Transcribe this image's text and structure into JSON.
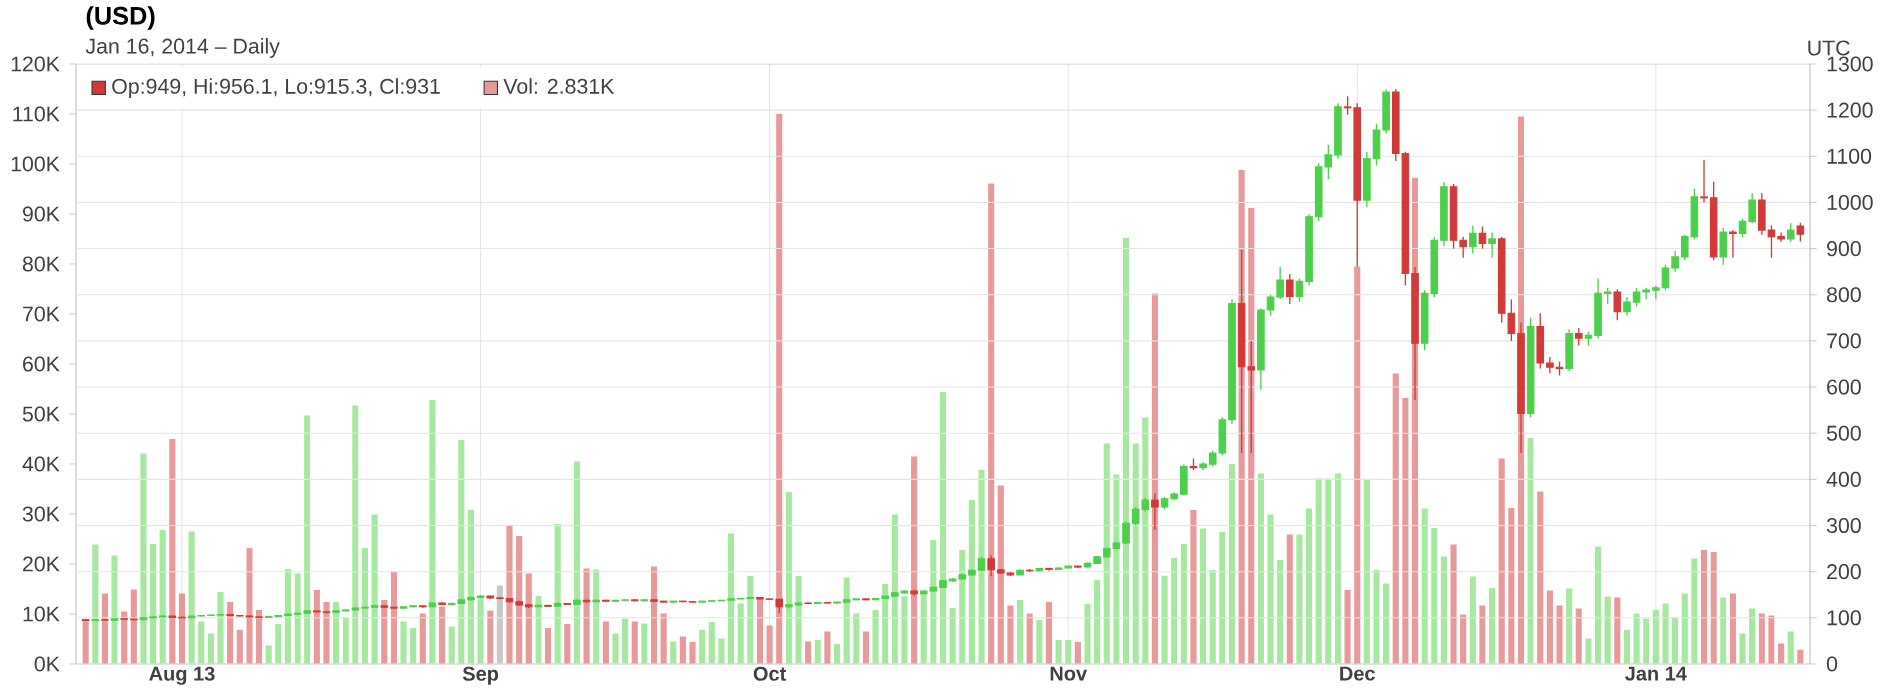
{
  "chart_data": {
    "type": "candlestick",
    "title": "(USD)",
    "subtitle": "Jan 16, 2014 – Daily",
    "annotations": [
      "UTC"
    ],
    "legend": "top left",
    "grid": true,
    "xlim": [
      "2013-07-21",
      "2014-01-17"
    ],
    "xticks": [
      {
        "value": "2013-08-01",
        "label": "Aug 13"
      },
      {
        "value": "2013-09-01",
        "label": "Sep"
      },
      {
        "value": "2013-10-01",
        "label": "Oct"
      },
      {
        "value": "2013-11-01",
        "label": "Nov"
      },
      {
        "value": "2013-12-01",
        "label": "Dec"
      },
      {
        "value": "2014-01-01",
        "label": "Jan 14"
      }
    ],
    "ylim": [
      0,
      120
    ],
    "yticks": [
      {
        "value": 0,
        "label": "0K"
      },
      {
        "value": 10,
        "label": "10K"
      },
      {
        "value": 20,
        "label": "20K"
      },
      {
        "value": 30,
        "label": "30K"
      },
      {
        "value": 40,
        "label": "40K"
      },
      {
        "value": 50,
        "label": "50K"
      },
      {
        "value": 60,
        "label": "60K"
      },
      {
        "value": 70,
        "label": "70K"
      },
      {
        "value": 80,
        "label": "80K"
      },
      {
        "value": 90,
        "label": "90K"
      },
      {
        "value": 100,
        "label": "100K"
      },
      {
        "value": 110,
        "label": "110K"
      },
      {
        "value": 120,
        "label": "120K"
      }
    ],
    "y2lim": [
      0,
      1300
    ],
    "y2ticks": [
      0,
      100,
      200,
      300,
      400,
      500,
      600,
      700,
      800,
      900,
      1000,
      1100,
      1200,
      1300
    ],
    "x": [
      "2013-07-22",
      "2013-07-23",
      "2013-07-24",
      "2013-07-25",
      "2013-07-26",
      "2013-07-27",
      "2013-07-28",
      "2013-07-29",
      "2013-07-30",
      "2013-07-31",
      "2013-08-01",
      "2013-08-02",
      "2013-08-03",
      "2013-08-04",
      "2013-08-05",
      "2013-08-06",
      "2013-08-07",
      "2013-08-08",
      "2013-08-09",
      "2013-08-10",
      "2013-08-11",
      "2013-08-12",
      "2013-08-13",
      "2013-08-14",
      "2013-08-15",
      "2013-08-16",
      "2013-08-17",
      "2013-08-18",
      "2013-08-19",
      "2013-08-20",
      "2013-08-21",
      "2013-08-22",
      "2013-08-23",
      "2013-08-24",
      "2013-08-25",
      "2013-08-26",
      "2013-08-27",
      "2013-08-28",
      "2013-08-29",
      "2013-08-30",
      "2013-08-31",
      "2013-09-01",
      "2013-09-02",
      "2013-09-03",
      "2013-09-04",
      "2013-09-05",
      "2013-09-06",
      "2013-09-07",
      "2013-09-08",
      "2013-09-09",
      "2013-09-10",
      "2013-09-11",
      "2013-09-12",
      "2013-09-13",
      "2013-09-14",
      "2013-09-15",
      "2013-09-16",
      "2013-09-17",
      "2013-09-18",
      "2013-09-19",
      "2013-09-20",
      "2013-09-21",
      "2013-09-22",
      "2013-09-23",
      "2013-09-24",
      "2013-09-25",
      "2013-09-26",
      "2013-09-27",
      "2013-09-28",
      "2013-09-29",
      "2013-09-30",
      "2013-10-01",
      "2013-10-02",
      "2013-10-03",
      "2013-10-04",
      "2013-10-05",
      "2013-10-06",
      "2013-10-07",
      "2013-10-08",
      "2013-10-09",
      "2013-10-10",
      "2013-10-11",
      "2013-10-12",
      "2013-10-13",
      "2013-10-14",
      "2013-10-15",
      "2013-10-16",
      "2013-10-17",
      "2013-10-18",
      "2013-10-19",
      "2013-10-20",
      "2013-10-21",
      "2013-10-22",
      "2013-10-23",
      "2013-10-24",
      "2013-10-25",
      "2013-10-26",
      "2013-10-27",
      "2013-10-28",
      "2013-10-29",
      "2013-10-30",
      "2013-10-31",
      "2013-11-01",
      "2013-11-02",
      "2013-11-03",
      "2013-11-04",
      "2013-11-05",
      "2013-11-06",
      "2013-11-07",
      "2013-11-08",
      "2013-11-09",
      "2013-11-10",
      "2013-11-11",
      "2013-11-12",
      "2013-11-13",
      "2013-11-14",
      "2013-11-15",
      "2013-11-16",
      "2013-11-17",
      "2013-11-18",
      "2013-11-19",
      "2013-11-20",
      "2013-11-21",
      "2013-11-22",
      "2013-11-23",
      "2013-11-24",
      "2013-11-25",
      "2013-11-26",
      "2013-11-27",
      "2013-11-28",
      "2013-11-29",
      "2013-11-30",
      "2013-12-01",
      "2013-12-02",
      "2013-12-03",
      "2013-12-04",
      "2013-12-05",
      "2013-12-06",
      "2013-12-07",
      "2013-12-08",
      "2013-12-09",
      "2013-12-10",
      "2013-12-11",
      "2013-12-12",
      "2013-12-13",
      "2013-12-14",
      "2013-12-15",
      "2013-12-16",
      "2013-12-17",
      "2013-12-18",
      "2013-12-19",
      "2013-12-20",
      "2013-12-21",
      "2013-12-22",
      "2013-12-23",
      "2013-12-24",
      "2013-12-25",
      "2013-12-26",
      "2013-12-27",
      "2013-12-28",
      "2013-12-29",
      "2013-12-30",
      "2013-12-31",
      "2014-01-01",
      "2014-01-02",
      "2014-01-03",
      "2014-01-04",
      "2014-01-05",
      "2014-01-06",
      "2014-01-07",
      "2014-01-08",
      "2014-01-09",
      "2014-01-10",
      "2014-01-11",
      "2014-01-12",
      "2014-01-13",
      "2014-01-14",
      "2014-01-15",
      "2014-01-16"
    ],
    "series": [
      {
        "type": "bar",
        "name": "Vol: 2.831K",
        "color": "#e89a9a",
        "values": [
          8.5,
          23.9,
          14.1,
          21.7,
          10.5,
          14.9,
          42.1,
          24,
          26.8,
          45,
          14.1,
          26.5,
          8.5,
          6.1,
          14.4,
          12.4,
          6.8,
          23.2,
          10.8,
          3.7,
          8,
          19,
          18.1,
          49.7,
          14.8,
          12.4,
          12.4,
          9.3,
          51.7,
          23.2,
          29.9,
          12.8,
          18.4,
          8.5,
          7.2,
          10.1,
          52.8,
          11.5,
          7.5,
          44.8,
          30.8,
          13.1,
          10.7,
          15.7,
          27.7,
          25.6,
          18.1,
          13.6,
          7.2,
          28,
          8,
          40.5,
          19.1,
          18.9,
          8.5,
          6.1,
          9.1,
          8.5,
          8.1,
          19.5,
          10.1,
          4.5,
          5.5,
          4.4,
          6.8,
          8.4,
          5.1,
          26.1,
          12.1,
          17.6,
          13.1,
          7.7,
          110,
          34.4,
          17.6,
          4.5,
          4.8,
          6.5,
          4,
          17.3,
          10.1,
          6.5,
          10.8,
          16,
          29.9,
          13.5,
          41.5,
          14.1,
          24.8,
          54.4,
          11.2,
          22.8,
          32.8,
          38.8,
          96.1,
          35.7,
          11.7,
          12.8,
          10.1,
          8.8,
          12.4,
          4.8,
          4.8,
          4.4,
          12,
          16.8,
          44.1,
          37.9,
          85.2,
          44.1,
          49.3,
          74.1,
          17.7,
          21.2,
          24,
          30.8,
          27.1,
          18.8,
          26.4,
          40,
          98.8,
          91.2,
          38.1,
          29.9,
          20.8,
          25.9,
          25.9,
          31.1,
          37.1,
          37.1,
          38.1,
          14.8,
          79.5,
          36.8,
          18.8,
          16.1,
          58.1,
          53.2,
          97.2,
          31.1,
          27.2,
          21.5,
          23.9,
          9.9,
          17.5,
          11.7,
          15.2,
          41.1,
          31.2,
          109.5,
          45.2,
          34.5,
          14.7,
          11.7,
          15.1,
          11.1,
          5.1,
          23.5,
          13.5,
          13.3,
          6.8,
          10.1,
          9.1,
          10.8,
          12.1,
          9.3,
          14.1,
          21.1,
          22.8,
          22.4,
          13.3,
          14.1,
          6.1,
          11.1,
          10.1,
          9.7,
          4.1,
          6.5,
          2.831
        ],
        "colors": [
          "#e89a9a",
          "#a6e8a0",
          "#e89a9a",
          "#a6e8a0",
          "#e89a9a",
          "#e89a9a",
          "#a6e8a0",
          "#a6e8a0",
          "#a6e8a0",
          "#e89a9a",
          "#e89a9a",
          "#a6e8a0",
          "#a6e8a0",
          "#a6e8a0",
          "#a6e8a0",
          "#e89a9a",
          "#e89a9a",
          "#e89a9a",
          "#e89a9a",
          "#a6e8a0",
          "#a6e8a0",
          "#a6e8a0",
          "#a6e8a0",
          "#a6e8a0",
          "#e89a9a",
          "#e89a9a",
          "#a6e8a0",
          "#a6e8a0",
          "#a6e8a0",
          "#a6e8a0",
          "#a6e8a0",
          "#e89a9a",
          "#e89a9a",
          "#a6e8a0",
          "#a6e8a0",
          "#e89a9a",
          "#a6e8a0",
          "#e89a9a",
          "#a6e8a0",
          "#a6e8a0",
          "#a6e8a0",
          "#a6e8a0",
          "#e89a9a",
          "#c8c8c8",
          "#e89a9a",
          "#e89a9a",
          "#e89a9a",
          "#a6e8a0",
          "#e89a9a",
          "#a6e8a0",
          "#e89a9a",
          "#a6e8a0",
          "#e89a9a",
          "#a6e8a0",
          "#e89a9a",
          "#a6e8a0",
          "#a6e8a0",
          "#e89a9a",
          "#a6e8a0",
          "#e89a9a",
          "#e89a9a",
          "#a6e8a0",
          "#e89a9a",
          "#e89a9a",
          "#a6e8a0",
          "#a6e8a0",
          "#a6e8a0",
          "#a6e8a0",
          "#a6e8a0",
          "#a6e8a0",
          "#e89a9a",
          "#e89a9a",
          "#e89a9a",
          "#a6e8a0",
          "#a6e8a0",
          "#e89a9a",
          "#a6e8a0",
          "#e89a9a",
          "#a6e8a0",
          "#a6e8a0",
          "#a6e8a0",
          "#e89a9a",
          "#a6e8a0",
          "#a6e8a0",
          "#a6e8a0",
          "#a6e8a0",
          "#e89a9a",
          "#a6e8a0",
          "#a6e8a0",
          "#a6e8a0",
          "#a6e8a0",
          "#a6e8a0",
          "#a6e8a0",
          "#a6e8a0",
          "#e89a9a",
          "#e89a9a",
          "#e89a9a",
          "#a6e8a0",
          "#e89a9a",
          "#a6e8a0",
          "#e89a9a",
          "#a6e8a0",
          "#a6e8a0",
          "#e89a9a",
          "#a6e8a0",
          "#a6e8a0",
          "#a6e8a0",
          "#a6e8a0",
          "#a6e8a0",
          "#a6e8a0",
          "#a6e8a0",
          "#e89a9a",
          "#a6e8a0",
          "#a6e8a0",
          "#a6e8a0",
          "#e89a9a",
          "#a6e8a0",
          "#a6e8a0",
          "#a6e8a0",
          "#a6e8a0",
          "#e89a9a",
          "#e89a9a",
          "#a6e8a0",
          "#a6e8a0",
          "#a6e8a0",
          "#e89a9a",
          "#a6e8a0",
          "#a6e8a0",
          "#a6e8a0",
          "#a6e8a0",
          "#a6e8a0",
          "#e89a9a",
          "#e89a9a",
          "#a6e8a0",
          "#a6e8a0",
          "#a6e8a0",
          "#e89a9a",
          "#e89a9a",
          "#e89a9a",
          "#a6e8a0",
          "#a6e8a0",
          "#a6e8a0",
          "#e89a9a",
          "#e89a9a",
          "#a6e8a0",
          "#e89a9a",
          "#a6e8a0",
          "#e89a9a",
          "#e89a9a",
          "#e89a9a",
          "#a6e8a0",
          "#e89a9a",
          "#e89a9a",
          "#e89a9a",
          "#a6e8a0",
          "#e89a9a",
          "#a6e8a0",
          "#a6e8a0",
          "#a6e8a0",
          "#e89a9a",
          "#a6e8a0",
          "#a6e8a0",
          "#a6e8a0",
          "#a6e8a0",
          "#a6e8a0",
          "#a6e8a0",
          "#a6e8a0",
          "#a6e8a0",
          "#e89a9a",
          "#e89a9a",
          "#a6e8a0",
          "#e89a9a",
          "#a6e8a0",
          "#a6e8a0",
          "#e89a9a",
          "#e89a9a",
          "#e89a9a",
          "#a6e8a0",
          "#e89a9a"
        ]
      },
      {
        "axis": "y2",
        "name": "Op:949, Hi:956.1, Lo:915.3, Cl:931",
        "color": "#d23a3a",
        "ohlc": [
          [
            96,
            97,
            93,
            94
          ],
          [
            94,
            97,
            93,
            96
          ],
          [
            96,
            97,
            94,
            95
          ],
          [
            95,
            99,
            94,
            98
          ],
          [
            98,
            99,
            96,
            97
          ],
          [
            97,
            98,
            94,
            96
          ],
          [
            96,
            101,
            95,
            100
          ],
          [
            100,
            103,
            99,
            102
          ],
          [
            102,
            105,
            101,
            104
          ],
          [
            104,
            105,
            99,
            101
          ],
          [
            101,
            103,
            99,
            100
          ],
          [
            100,
            105,
            99,
            104
          ],
          [
            104,
            106,
            103,
            105
          ],
          [
            105,
            107,
            104,
            106
          ],
          [
            106,
            108,
            105,
            107
          ],
          [
            107,
            108,
            104,
            105
          ],
          [
            105,
            106,
            103,
            104
          ],
          [
            104,
            105,
            100,
            102
          ],
          [
            102,
            103,
            100,
            101
          ],
          [
            101,
            104,
            100,
            103
          ],
          [
            103,
            106,
            102,
            105
          ],
          [
            105,
            109,
            104,
            108
          ],
          [
            108,
            111,
            107,
            110
          ],
          [
            110,
            116,
            109,
            115
          ],
          [
            115,
            116,
            111,
            113
          ],
          [
            113,
            114,
            110,
            112
          ],
          [
            112,
            116,
            111,
            115
          ],
          [
            115,
            118,
            114,
            117
          ],
          [
            117,
            123,
            116,
            121
          ],
          [
            121,
            124,
            119,
            123
          ],
          [
            123,
            128,
            122,
            126
          ],
          [
            126,
            127,
            121,
            123
          ],
          [
            123,
            124,
            119,
            121
          ],
          [
            121,
            125,
            120,
            124
          ],
          [
            124,
            127,
            123,
            126
          ],
          [
            126,
            127,
            122,
            124
          ],
          [
            124,
            134,
            123,
            132
          ],
          [
            132,
            133,
            127,
            129
          ],
          [
            129,
            133,
            128,
            131
          ],
          [
            131,
            141,
            130,
            139
          ],
          [
            139,
            146,
            137,
            144
          ],
          [
            144,
            149,
            142,
            147
          ],
          [
            147,
            148,
            141,
            143
          ],
          [
            143,
            145,
            140,
            142
          ],
          [
            142,
            143,
            133,
            135
          ],
          [
            135,
            137,
            126,
            128
          ],
          [
            128,
            130,
            121,
            124
          ],
          [
            124,
            129,
            123,
            127
          ],
          [
            127,
            128,
            124,
            125
          ],
          [
            125,
            133,
            124,
            131
          ],
          [
            131,
            132,
            128,
            129
          ],
          [
            129,
            140,
            128,
            138
          ],
          [
            138,
            139,
            133,
            135
          ],
          [
            135,
            140,
            134,
            138
          ],
          [
            138,
            139,
            135,
            136
          ],
          [
            136,
            139,
            135,
            138
          ],
          [
            138,
            140,
            137,
            139
          ],
          [
            139,
            140,
            136,
            137
          ],
          [
            137,
            140,
            136,
            139
          ],
          [
            139,
            140,
            134,
            136
          ],
          [
            136,
            137,
            133,
            134
          ],
          [
            134,
            137,
            133,
            136
          ],
          [
            136,
            137,
            134,
            135
          ],
          [
            135,
            136,
            133,
            134
          ],
          [
            134,
            137,
            133,
            136
          ],
          [
            136,
            138,
            135,
            137
          ],
          [
            137,
            139,
            136,
            138
          ],
          [
            138,
            143,
            137,
            141
          ],
          [
            141,
            143,
            140,
            142
          ],
          [
            142,
            145,
            141,
            144
          ],
          [
            144,
            145,
            140,
            141
          ],
          [
            141,
            142,
            139,
            140
          ],
          [
            140,
            141,
            110,
            124
          ],
          [
            124,
            130,
            120,
            128
          ],
          [
            128,
            133,
            127,
            132
          ],
          [
            132,
            133,
            130,
            131
          ],
          [
            131,
            134,
            130,
            133
          ],
          [
            133,
            134,
            131,
            132
          ],
          [
            132,
            135,
            131,
            134
          ],
          [
            134,
            140,
            133,
            139
          ],
          [
            139,
            142,
            138,
            141
          ],
          [
            141,
            142,
            138,
            139
          ],
          [
            139,
            143,
            138,
            142
          ],
          [
            142,
            148,
            141,
            147
          ],
          [
            147,
            156,
            146,
            154
          ],
          [
            154,
            160,
            153,
            158
          ],
          [
            158,
            160,
            148,
            152
          ],
          [
            152,
            160,
            151,
            158
          ],
          [
            158,
            168,
            157,
            166
          ],
          [
            166,
            182,
            165,
            180
          ],
          [
            180,
            186,
            178,
            184
          ],
          [
            184,
            195,
            183,
            193
          ],
          [
            193,
            205,
            191,
            203
          ],
          [
            203,
            232,
            200,
            228
          ],
          [
            228,
            235,
            190,
            204
          ],
          [
            204,
            206,
            195,
            197
          ],
          [
            197,
            199,
            190,
            193
          ],
          [
            193,
            205,
            192,
            203
          ],
          [
            203,
            206,
            200,
            202
          ],
          [
            202,
            208,
            201,
            207
          ],
          [
            207,
            208,
            202,
            205
          ],
          [
            205,
            210,
            204,
            208
          ],
          [
            208,
            213,
            207,
            212
          ],
          [
            212,
            213,
            208,
            210
          ],
          [
            210,
            220,
            209,
            218
          ],
          [
            218,
            234,
            217,
            232
          ],
          [
            232,
            252,
            230,
            250
          ],
          [
            250,
            265,
            248,
            262
          ],
          [
            262,
            310,
            260,
            305
          ],
          [
            305,
            340,
            300,
            335
          ],
          [
            335,
            360,
            330,
            355
          ],
          [
            355,
            370,
            290,
            340
          ],
          [
            340,
            362,
            335,
            358
          ],
          [
            358,
            372,
            355,
            368
          ],
          [
            368,
            432,
            365,
            428
          ],
          [
            428,
            445,
            420,
            425
          ],
          [
            425,
            438,
            420,
            433
          ],
          [
            433,
            462,
            428,
            457
          ],
          [
            457,
            535,
            452,
            529
          ],
          [
            529,
            790,
            520,
            781
          ],
          [
            781,
            897,
            457,
            644
          ],
          [
            644,
            700,
            457,
            637
          ],
          [
            637,
            770,
            594,
            767
          ],
          [
            767,
            800,
            755,
            795
          ],
          [
            795,
            860,
            790,
            832
          ],
          [
            832,
            845,
            780,
            796
          ],
          [
            796,
            835,
            785,
            829
          ],
          [
            829,
            975,
            820,
            969
          ],
          [
            969,
            1085,
            960,
            1077
          ],
          [
            1077,
            1125,
            1050,
            1103
          ],
          [
            1103,
            1215,
            1095,
            1207
          ],
          [
            1207,
            1230,
            1190,
            1205
          ],
          [
            1205,
            1215,
            861,
            1005
          ],
          [
            1005,
            1110,
            990,
            1095
          ],
          [
            1095,
            1170,
            1080,
            1157
          ],
          [
            1157,
            1245,
            1150,
            1239
          ],
          [
            1239,
            1245,
            1090,
            1106
          ],
          [
            1106,
            1110,
            820,
            846
          ],
          [
            846,
            860,
            572,
            695
          ],
          [
            695,
            810,
            680,
            803
          ],
          [
            803,
            925,
            795,
            918
          ],
          [
            918,
            1045,
            905,
            1034
          ],
          [
            1034,
            1040,
            900,
            918
          ],
          [
            918,
            925,
            880,
            904
          ],
          [
            904,
            950,
            890,
            933
          ],
          [
            933,
            948,
            900,
            911
          ],
          [
            911,
            935,
            880,
            921
          ],
          [
            921,
            925,
            740,
            760
          ],
          [
            760,
            790,
            700,
            716
          ],
          [
            716,
            740,
            457,
            543
          ],
          [
            543,
            750,
            535,
            731
          ],
          [
            731,
            760,
            640,
            652
          ],
          [
            652,
            665,
            630,
            643
          ],
          [
            643,
            655,
            625,
            640
          ],
          [
            640,
            725,
            635,
            716
          ],
          [
            716,
            728,
            690,
            706
          ],
          [
            706,
            720,
            690,
            712
          ],
          [
            712,
            835,
            705,
            803
          ],
          [
            803,
            815,
            780,
            806
          ],
          [
            806,
            812,
            745,
            763
          ],
          [
            763,
            795,
            755,
            784
          ],
          [
            784,
            815,
            775,
            806
          ],
          [
            806,
            815,
            790,
            810
          ],
          [
            810,
            820,
            790,
            815
          ],
          [
            815,
            865,
            810,
            858
          ],
          [
            858,
            895,
            850,
            882
          ],
          [
            882,
            930,
            875,
            926
          ],
          [
            926,
            1030,
            920,
            1012
          ],
          [
            1012,
            1092,
            1000,
            1010
          ],
          [
            1010,
            1045,
            875,
            882
          ],
          [
            882,
            945,
            865,
            936
          ],
          [
            936,
            940,
            880,
            933
          ],
          [
            933,
            965,
            925,
            959
          ],
          [
            959,
            1020,
            955,
            1005
          ],
          [
            1005,
            1020,
            930,
            940
          ],
          [
            940,
            950,
            880,
            926
          ],
          [
            926,
            935,
            915,
            921
          ],
          [
            921,
            955,
            915,
            940
          ],
          [
            949,
            956.1,
            915.3,
            931
          ]
        ],
        "colors": [
          "#d23a3a",
          "#4cd04c",
          "#d23a3a",
          "#4cd04c",
          "#d23a3a",
          "#d23a3a",
          "#4cd04c",
          "#4cd04c",
          "#4cd04c",
          "#d23a3a",
          "#d23a3a",
          "#4cd04c",
          "#4cd04c",
          "#4cd04c",
          "#4cd04c",
          "#d23a3a",
          "#d23a3a",
          "#d23a3a",
          "#d23a3a",
          "#4cd04c",
          "#4cd04c",
          "#4cd04c",
          "#4cd04c",
          "#4cd04c",
          "#d23a3a",
          "#d23a3a",
          "#4cd04c",
          "#4cd04c",
          "#4cd04c",
          "#4cd04c",
          "#4cd04c",
          "#d23a3a",
          "#d23a3a",
          "#4cd04c",
          "#4cd04c",
          "#d23a3a",
          "#4cd04c",
          "#d23a3a",
          "#4cd04c",
          "#4cd04c",
          "#4cd04c",
          "#4cd04c",
          "#d23a3a",
          "#d23a3a",
          "#d23a3a",
          "#d23a3a",
          "#d23a3a",
          "#4cd04c",
          "#d23a3a",
          "#4cd04c",
          "#d23a3a",
          "#4cd04c",
          "#d23a3a",
          "#4cd04c",
          "#d23a3a",
          "#4cd04c",
          "#4cd04c",
          "#d23a3a",
          "#4cd04c",
          "#d23a3a",
          "#d23a3a",
          "#4cd04c",
          "#d23a3a",
          "#d23a3a",
          "#4cd04c",
          "#4cd04c",
          "#4cd04c",
          "#4cd04c",
          "#4cd04c",
          "#4cd04c",
          "#d23a3a",
          "#d23a3a",
          "#d23a3a",
          "#4cd04c",
          "#4cd04c",
          "#d23a3a",
          "#4cd04c",
          "#d23a3a",
          "#4cd04c",
          "#4cd04c",
          "#4cd04c",
          "#d23a3a",
          "#4cd04c",
          "#4cd04c",
          "#4cd04c",
          "#4cd04c",
          "#d23a3a",
          "#4cd04c",
          "#4cd04c",
          "#4cd04c",
          "#4cd04c",
          "#4cd04c",
          "#4cd04c",
          "#4cd04c",
          "#d23a3a",
          "#d23a3a",
          "#d23a3a",
          "#4cd04c",
          "#d23a3a",
          "#4cd04c",
          "#d23a3a",
          "#4cd04c",
          "#4cd04c",
          "#d23a3a",
          "#4cd04c",
          "#4cd04c",
          "#4cd04c",
          "#4cd04c",
          "#4cd04c",
          "#4cd04c",
          "#4cd04c",
          "#d23a3a",
          "#4cd04c",
          "#4cd04c",
          "#4cd04c",
          "#d23a3a",
          "#4cd04c",
          "#4cd04c",
          "#4cd04c",
          "#4cd04c",
          "#d23a3a",
          "#d23a3a",
          "#4cd04c",
          "#4cd04c",
          "#4cd04c",
          "#d23a3a",
          "#4cd04c",
          "#4cd04c",
          "#4cd04c",
          "#4cd04c",
          "#4cd04c",
          "#d23a3a",
          "#d23a3a",
          "#4cd04c",
          "#4cd04c",
          "#4cd04c",
          "#d23a3a",
          "#d23a3a",
          "#d23a3a",
          "#4cd04c",
          "#4cd04c",
          "#4cd04c",
          "#d23a3a",
          "#d23a3a",
          "#4cd04c",
          "#d23a3a",
          "#4cd04c",
          "#d23a3a",
          "#d23a3a",
          "#d23a3a",
          "#4cd04c",
          "#d23a3a",
          "#d23a3a",
          "#d23a3a",
          "#4cd04c",
          "#d23a3a",
          "#4cd04c",
          "#4cd04c",
          "#4cd04c",
          "#d23a3a",
          "#4cd04c",
          "#4cd04c",
          "#4cd04c",
          "#4cd04c",
          "#4cd04c",
          "#4cd04c",
          "#4cd04c",
          "#4cd04c",
          "#d23a3a",
          "#d23a3a",
          "#4cd04c",
          "#d23a3a",
          "#4cd04c",
          "#4cd04c",
          "#d23a3a",
          "#d23a3a",
          "#d23a3a",
          "#4cd04c",
          "#d23a3a"
        ]
      }
    ]
  }
}
